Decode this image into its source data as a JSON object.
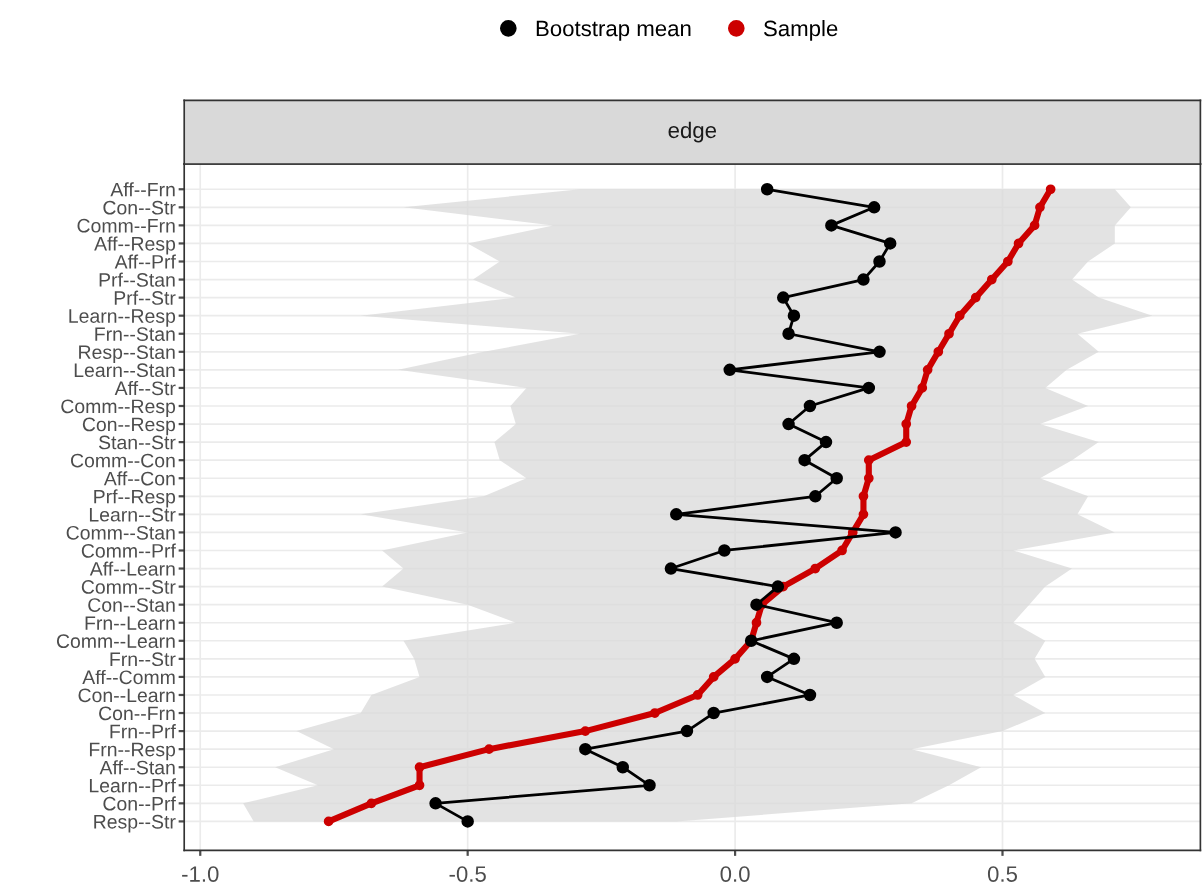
{
  "chart_data": {
    "type": "line",
    "orientation": "horizontal",
    "title": "edge",
    "categories": [
      "Aff--Frn",
      "Con--Str",
      "Comm--Frn",
      "Aff--Resp",
      "Aff--Prf",
      "Prf--Stan",
      "Prf--Str",
      "Learn--Resp",
      "Frn--Stan",
      "Resp--Stan",
      "Learn--Stan",
      "Aff--Str",
      "Comm--Resp",
      "Con--Resp",
      "Stan--Str",
      "Comm--Con",
      "Aff--Con",
      "Prf--Resp",
      "Learn--Str",
      "Comm--Stan",
      "Comm--Prf",
      "Aff--Learn",
      "Comm--Str",
      "Con--Stan",
      "Frn--Learn",
      "Comm--Learn",
      "Frn--Str",
      "Aff--Comm",
      "Con--Learn",
      "Con--Frn",
      "Frn--Prf",
      "Frn--Resp",
      "Aff--Stan",
      "Learn--Prf",
      "Con--Prf",
      "Resp--Str"
    ],
    "series": [
      {
        "name": "Bootstrap mean",
        "color": "#000000",
        "values": [
          0.06,
          0.26,
          0.18,
          0.29,
          0.27,
          0.24,
          0.09,
          0.11,
          0.1,
          0.27,
          -0.01,
          0.25,
          0.14,
          0.1,
          0.17,
          0.13,
          0.19,
          0.15,
          -0.11,
          0.3,
          -0.02,
          -0.12,
          0.08,
          0.04,
          0.19,
          0.03,
          0.11,
          0.06,
          0.14,
          -0.04,
          -0.09,
          -0.28,
          -0.21,
          -0.16,
          -0.56,
          -0.5
        ]
      },
      {
        "name": "Sample",
        "color": "#cc0000",
        "values": [
          0.59,
          0.57,
          0.56,
          0.53,
          0.51,
          0.48,
          0.45,
          0.42,
          0.4,
          0.38,
          0.36,
          0.35,
          0.33,
          0.32,
          0.32,
          0.25,
          0.25,
          0.24,
          0.24,
          0.22,
          0.2,
          0.15,
          0.09,
          0.05,
          0.04,
          0.03,
          0.0,
          -0.04,
          -0.07,
          -0.15,
          -0.28,
          -0.46,
          -0.59,
          -0.59,
          -0.68,
          -0.76
        ],
        "lower": [
          -0.29,
          -0.62,
          -0.34,
          -0.5,
          -0.44,
          -0.49,
          -0.41,
          -0.7,
          -0.29,
          -0.47,
          -0.63,
          -0.39,
          -0.42,
          -0.41,
          -0.45,
          -0.44,
          -0.39,
          -0.47,
          -0.7,
          -0.5,
          -0.66,
          -0.62,
          -0.66,
          -0.5,
          -0.41,
          -0.62,
          -0.6,
          -0.59,
          -0.68,
          -0.7,
          -0.82,
          -0.75,
          -0.86,
          -0.78,
          -0.92,
          -0.9
        ],
        "upper": [
          0.71,
          0.74,
          0.71,
          0.71,
          0.66,
          0.63,
          0.68,
          0.78,
          0.64,
          0.68,
          0.62,
          0.58,
          0.66,
          0.57,
          0.68,
          0.63,
          0.57,
          0.66,
          0.64,
          0.71,
          0.52,
          0.63,
          0.58,
          0.55,
          0.52,
          0.58,
          0.56,
          0.58,
          0.52,
          0.58,
          0.5,
          0.33,
          0.46,
          0.4,
          0.33,
          -0.11
        ]
      }
    ],
    "xlim": [
      -1.03,
      0.87
    ],
    "xticks": [
      {
        "value": -1.0,
        "label": "-1.0"
      },
      {
        "value": -0.5,
        "label": "-0.5"
      },
      {
        "value": 0.0,
        "label": "0.0"
      },
      {
        "value": 0.5,
        "label": "0.5"
      }
    ],
    "grid": true,
    "legend": "top",
    "marker": "circle",
    "line_style": "solid"
  }
}
